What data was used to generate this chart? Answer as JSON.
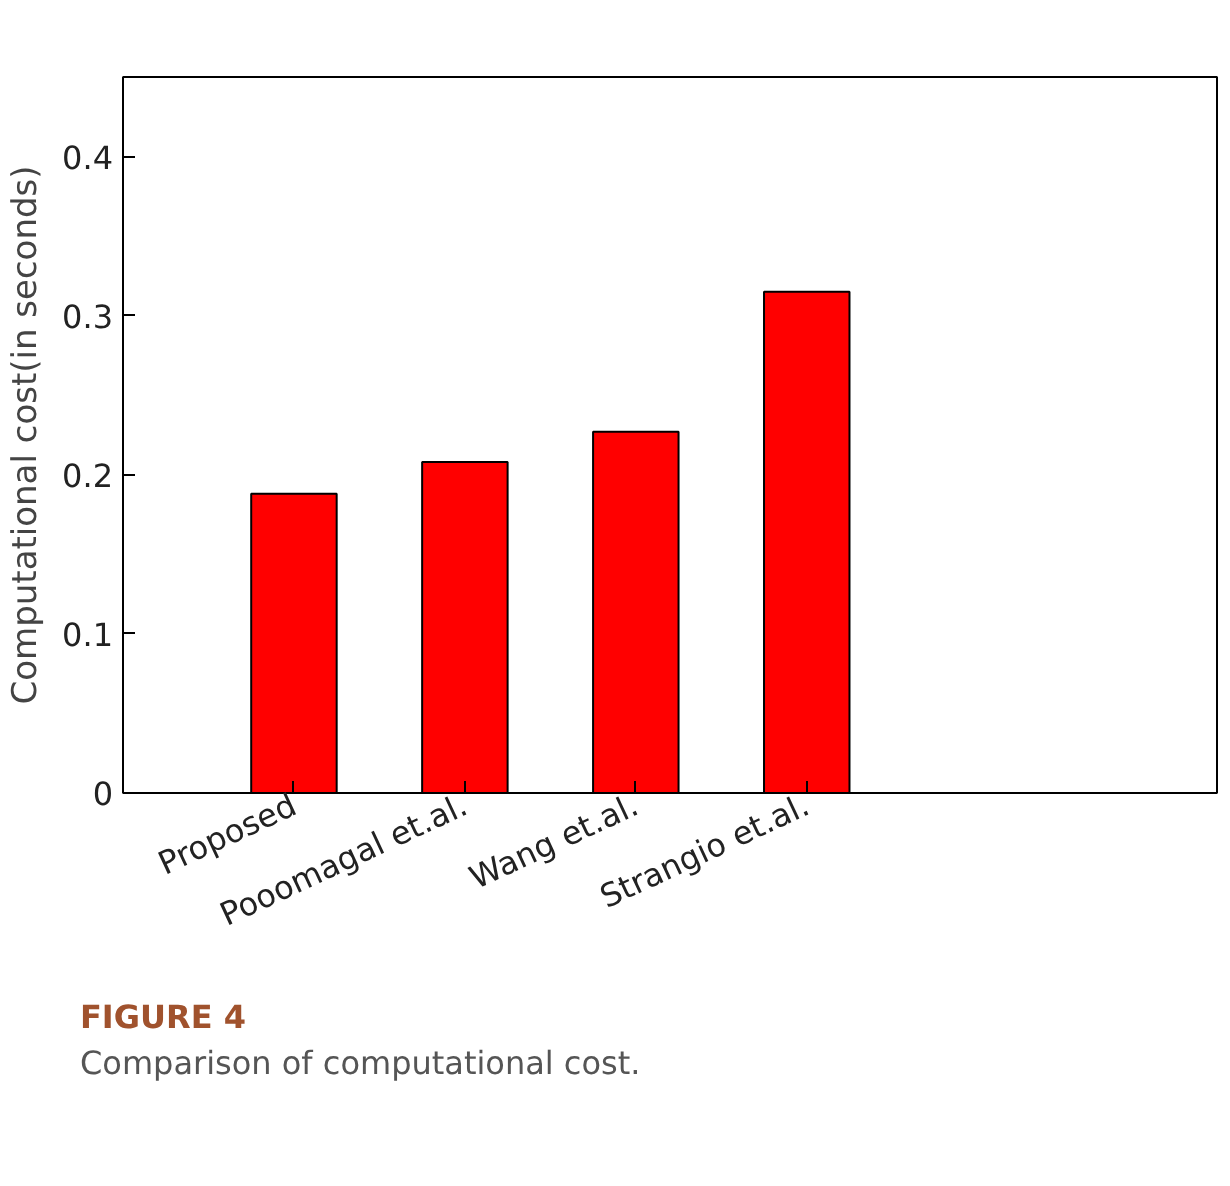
{
  "chart_data": {
    "type": "bar",
    "ylabel": "Computational cost(in seconds)",
    "categories": [
      "Proposed",
      "Pooomagal et.al.",
      "Wang et.al.",
      "Strangio et.al."
    ],
    "values": [
      0.188,
      0.208,
      0.227,
      0.315
    ],
    "color": "#ff0000",
    "ylim": [
      0,
      0.45
    ],
    "yticks": [
      0,
      0.1,
      0.2,
      0.3,
      0.4
    ],
    "grid": false,
    "annotations": [
      "FIGURE 4",
      "Comparison of computational cost."
    ]
  }
}
